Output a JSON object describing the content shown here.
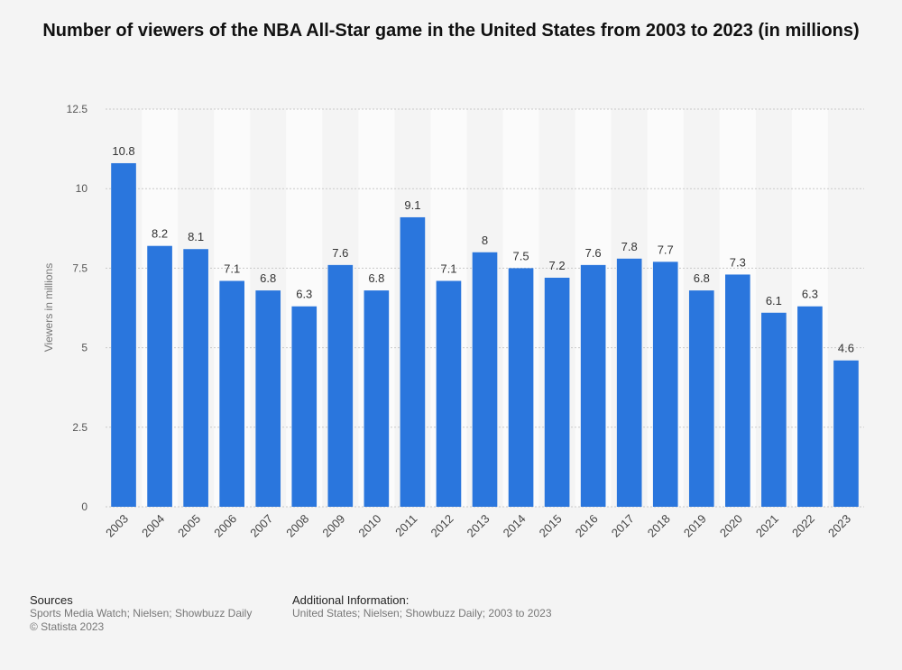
{
  "chart_data": {
    "type": "bar",
    "title": "Number of viewers of the NBA All-Star game in the United States from 2003 to 2023 (in millions)",
    "xlabel": "",
    "ylabel": "Viewers in millions",
    "ylim": [
      0,
      12.5
    ],
    "y_ticks": [
      "0",
      "2.5",
      "5",
      "7.5",
      "10",
      "12.5"
    ],
    "categories": [
      "2003",
      "2004",
      "2005",
      "2006",
      "2007",
      "2008",
      "2009",
      "2010",
      "2011",
      "2012",
      "2013",
      "2014",
      "2015",
      "2016",
      "2017",
      "2018",
      "2019",
      "2020",
      "2021",
      "2022",
      "2023"
    ],
    "values": [
      10.8,
      8.2,
      8.1,
      7.1,
      6.8,
      6.3,
      7.6,
      6.8,
      9.1,
      7.1,
      8,
      7.5,
      7.2,
      7.6,
      7.8,
      7.7,
      6.8,
      7.3,
      6.1,
      6.3,
      4.6
    ],
    "value_labels": [
      "10.8",
      "8.2",
      "8.1",
      "7.1",
      "6.8",
      "6.3",
      "7.6",
      "6.8",
      "9.1",
      "7.1",
      "8",
      "7.5",
      "7.2",
      "7.6",
      "7.8",
      "7.7",
      "6.8",
      "7.3",
      "6.1",
      "6.3",
      "4.6"
    ],
    "grid": true,
    "legend": "none",
    "bar_color": "#2a76dd"
  },
  "footer": {
    "sources_heading": "Sources",
    "sources_line1": "Sports Media Watch; Nielsen; Showbuzz Daily",
    "sources_line2": "© Statista 2023",
    "additional_heading": "Additional Information:",
    "additional_text": "United States; Nielsen; Showbuzz Daily; 2003 to 2023"
  }
}
